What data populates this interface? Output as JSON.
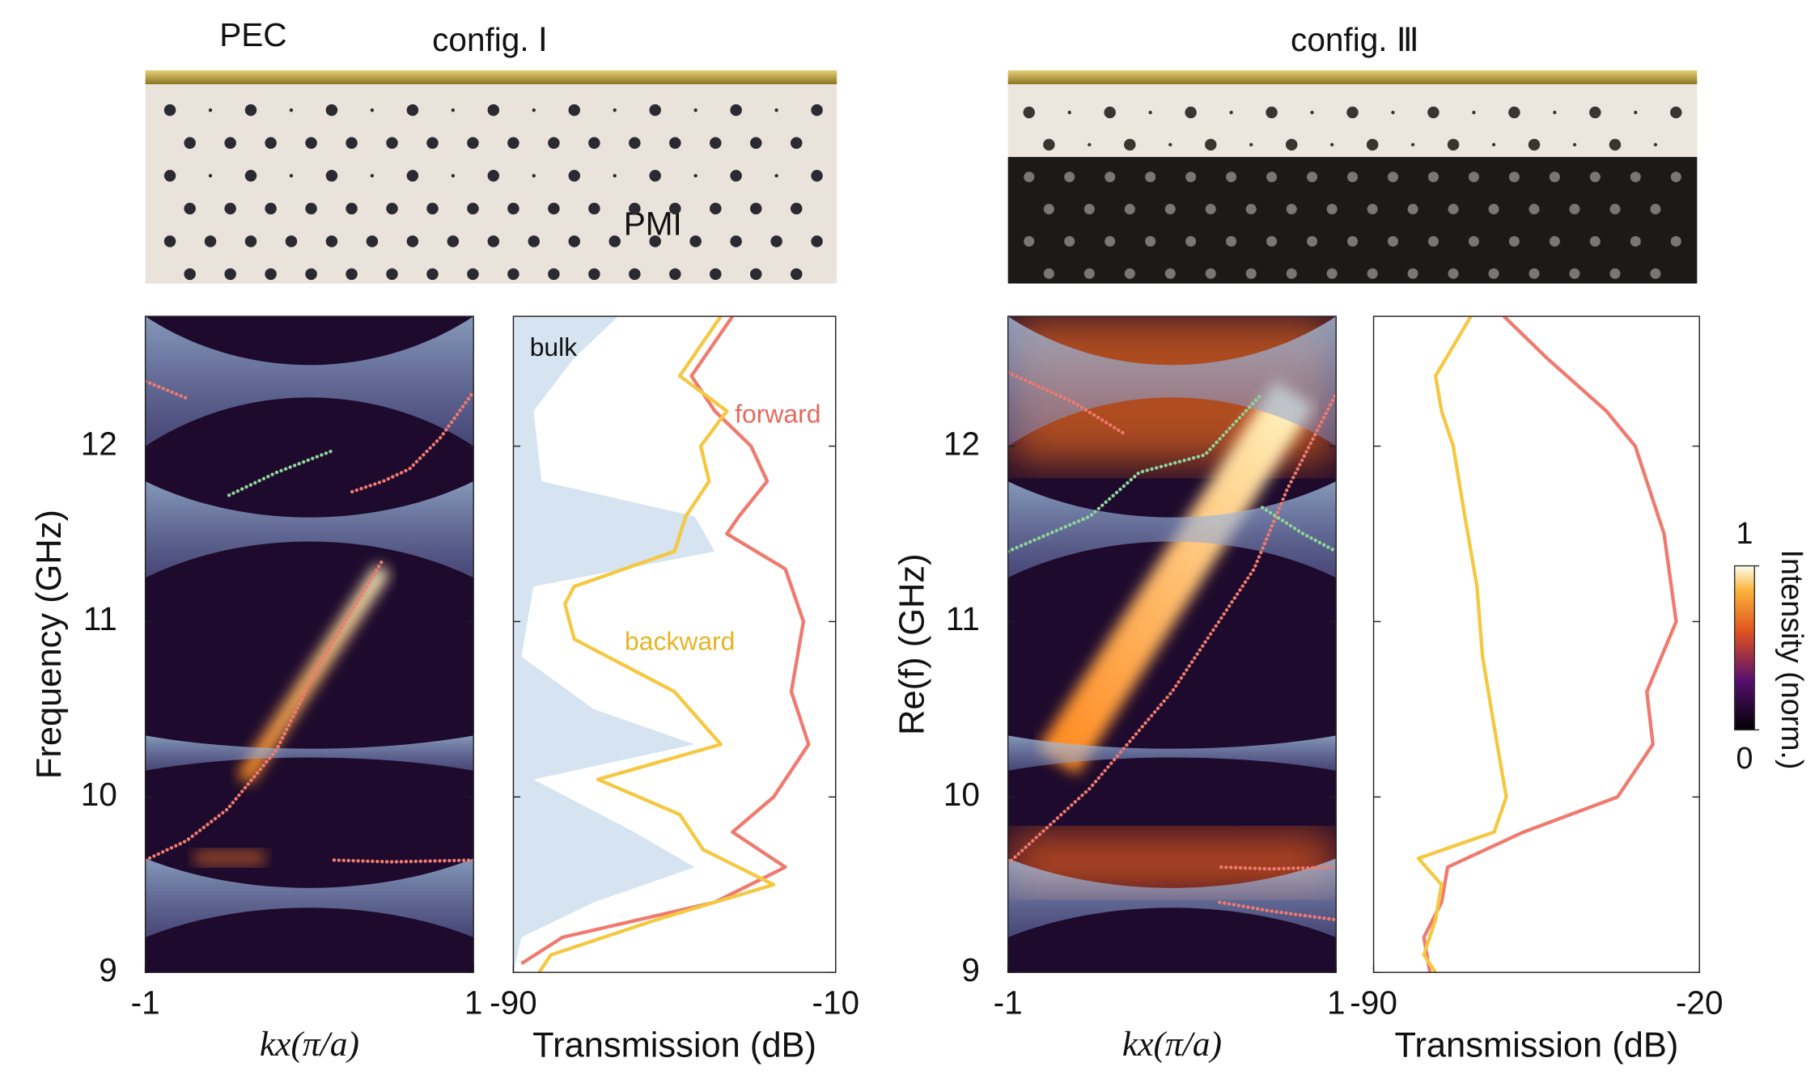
{
  "photos": {
    "left_title": "config. Ⅰ",
    "left_pec": "PEC",
    "left_pmi": "PMI",
    "right_title": "config. Ⅲ"
  },
  "chart_data": [
    {
      "type": "dispersion",
      "xlabel": "kx(π/a)",
      "ylabel": "Frequency (GHz)",
      "xlim": [
        -1,
        1
      ],
      "ylim": [
        9,
        12.74
      ],
      "xticks": [
        -1,
        1
      ],
      "yticks": [
        9,
        10,
        11,
        12
      ],
      "series": [
        {
          "color": "#f07a6e",
          "x": [
            -1,
            -0.75,
            -0.5,
            -0.2,
            0.05,
            0.25,
            0.44
          ],
          "values": [
            9.64,
            9.75,
            9.93,
            10.27,
            10.74,
            11.05,
            11.34
          ]
        },
        {
          "color": "#f07a6e",
          "x": [
            0.26,
            0.45,
            0.61,
            0.8,
            1
          ],
          "values": [
            11.74,
            11.8,
            11.87,
            12.05,
            12.31
          ]
        },
        {
          "color": "#f07a6e",
          "x": [
            0.15,
            0.5,
            1
          ],
          "values": [
            9.64,
            9.63,
            9.64
          ]
        },
        {
          "color": "#f07a6e",
          "x": [
            -1,
            -0.74
          ],
          "values": [
            12.37,
            12.27
          ]
        },
        {
          "color": "#8fd49a",
          "x": [
            -0.49,
            -0.2,
            0.13
          ],
          "values": [
            11.72,
            11.85,
            11.97
          ]
        }
      ]
    },
    {
      "type": "line",
      "xlabel": "Transmission (dB)",
      "xlim": [
        -90,
        -10
      ],
      "ylim": [
        9,
        12.74
      ],
      "xticks": [
        -90,
        -10
      ],
      "yticks": [
        9,
        10,
        11,
        12
      ],
      "series": [
        {
          "name": "bulk",
          "color": "#d5e4f0",
          "area": true,
          "y": [
            12.74,
            12.5,
            12.2,
            11.8,
            11.6,
            11.4,
            11.2,
            10.8,
            10.5,
            10.3,
            10.1,
            9.8,
            9.6,
            9.4,
            9.2,
            9
          ],
          "values": [
            -64,
            -75,
            -85,
            -83,
            -45,
            -40,
            -85,
            -88,
            -70,
            -45,
            -85,
            -60,
            -45,
            -70,
            -88,
            -90
          ]
        },
        {
          "name": "forward",
          "color": "#f07a6e",
          "y": [
            12.74,
            12.4,
            12.2,
            12,
            11.8,
            11.6,
            11.5,
            11.3,
            11,
            10.6,
            10.3,
            10,
            9.8,
            9.6,
            9.4,
            9.2,
            9.05
          ],
          "values": [
            -35.6,
            -45.8,
            -40,
            -31,
            -27,
            -34,
            -37,
            -22.5,
            -18,
            -21,
            -16.7,
            -25.4,
            -35.6,
            -22.5,
            -40,
            -77.8,
            -88
          ]
        },
        {
          "name": "backward",
          "color": "#f5c842",
          "y": [
            12.74,
            12.4,
            12.2,
            12,
            11.8,
            11.6,
            11.4,
            11.2,
            11.1,
            10.9,
            10.6,
            10.3,
            10.1,
            9.9,
            9.7,
            9.5,
            9.3,
            9.1,
            9
          ],
          "values": [
            -38.5,
            -48.7,
            -37,
            -43.5,
            -41.4,
            -47.2,
            -50,
            -74.9,
            -77.2,
            -74.9,
            -50,
            -38.5,
            -69,
            -48.7,
            -42.9,
            -25.4,
            -54.5,
            -80.7,
            -83.6
          ]
        }
      ]
    },
    {
      "type": "dispersion",
      "xlabel": "kx(π/a)",
      "ylabel": "Re(f) (GHz)",
      "xlim": [
        -1,
        1
      ],
      "ylim": [
        9,
        12.74
      ],
      "xticks": [
        -1,
        1
      ],
      "yticks": [
        9,
        10,
        11,
        12
      ],
      "colorbar": {
        "label": "Intensity (norm.)",
        "ticks": [
          0,
          1
        ]
      },
      "series": [
        {
          "color": "#f07a6e",
          "x": [
            -1,
            -0.5,
            0,
            0.5,
            0.7,
            1
          ],
          "values": [
            9.62,
            10.05,
            10.6,
            11.3,
            11.75,
            12.3
          ]
        },
        {
          "color": "#f07a6e",
          "x": [
            -1,
            -0.6,
            -0.29
          ],
          "values": [
            12.42,
            12.25,
            12.07
          ]
        },
        {
          "color": "#f07a6e",
          "x": [
            0.29,
            0.6,
            1
          ],
          "values": [
            9.4,
            9.35,
            9.3
          ]
        },
        {
          "color": "#f07a6e",
          "x": [
            0.3,
            0.6,
            1
          ],
          "values": [
            9.6,
            9.59,
            9.6
          ]
        },
        {
          "color": "#8fd49a",
          "x": [
            -1,
            -0.5,
            -0.2,
            0.2,
            0.55
          ],
          "values": [
            11.4,
            11.6,
            11.85,
            11.95,
            12.3
          ]
        },
        {
          "color": "#8fd49a",
          "x": [
            0.55,
            0.8,
            1
          ],
          "values": [
            11.65,
            11.5,
            11.4
          ]
        }
      ]
    },
    {
      "type": "line",
      "xlabel": "Transmission (dB)",
      "xlim": [
        -90,
        -20
      ],
      "ylim": [
        9,
        12.74
      ],
      "xticks": [
        -90,
        -20
      ],
      "yticks": [
        9,
        10,
        11,
        12
      ],
      "series": [
        {
          "color": "#f07a6e",
          "y": [
            12.74,
            12.5,
            12.2,
            12,
            11.5,
            11,
            10.6,
            10.3,
            10,
            9.8,
            9.6,
            9.4,
            9.2,
            9
          ],
          "values": [
            -62,
            -52.7,
            -40,
            -33.8,
            -27.6,
            -25,
            -31.3,
            -30,
            -37.6,
            -57.8,
            -74.1,
            -75.4,
            -79.2,
            -77.9
          ]
        },
        {
          "color": "#f5c842",
          "y": [
            12.74,
            12.4,
            12.2,
            12,
            11.6,
            11.2,
            10.8,
            10.4,
            10,
            9.8,
            9.65,
            9.5,
            9.3,
            9.1,
            9
          ],
          "values": [
            -69.1,
            -76.7,
            -75.4,
            -72.9,
            -70.4,
            -67.8,
            -66.6,
            -64.1,
            -61.5,
            -64.1,
            -80.4,
            -75.4,
            -76.7,
            -79.2,
            -76.7
          ]
        }
      ]
    }
  ]
}
